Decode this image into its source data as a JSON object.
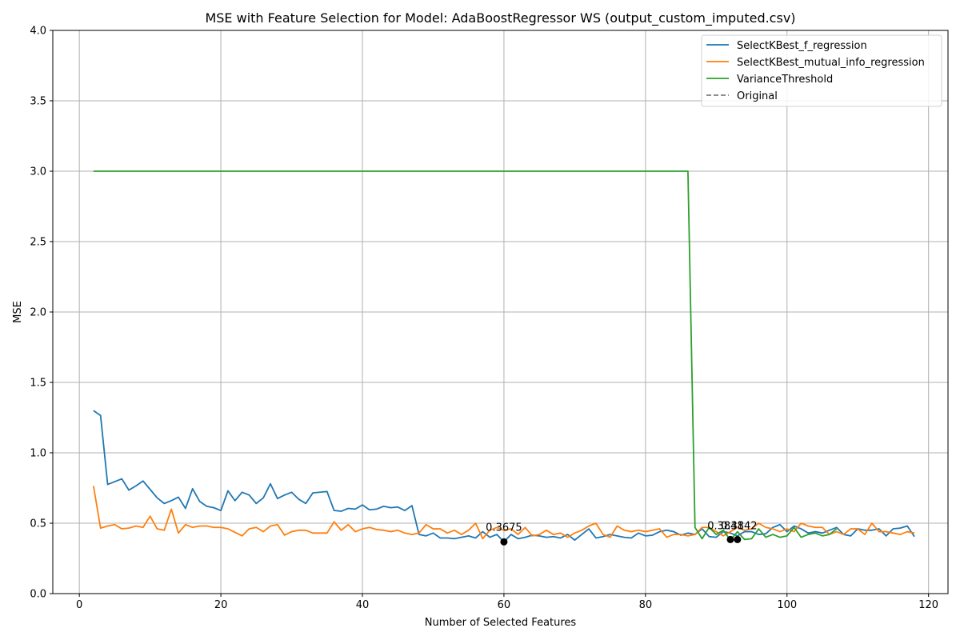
{
  "chart_data": {
    "type": "line",
    "title": "MSE with Feature Selection for Model: AdaBoostRegressor WS (output_custom_imputed.csv)",
    "xlabel": "Number of Selected Features",
    "ylabel": "MSE",
    "xlim": [
      -3.75,
      122.75
    ],
    "ylim": [
      0.0,
      4.0
    ],
    "xticks": [
      0,
      20,
      40,
      60,
      80,
      100,
      120
    ],
    "xtick_labels": [
      "0",
      "20",
      "40",
      "60",
      "80",
      "100",
      "120"
    ],
    "yticks": [
      0.0,
      0.5,
      1.0,
      1.5,
      2.0,
      2.5,
      3.0,
      3.5,
      4.0
    ],
    "ytick_labels": [
      "0.0",
      "0.5",
      "1.0",
      "1.5",
      "2.0",
      "2.5",
      "3.0",
      "3.5",
      "4.0"
    ],
    "grid": true,
    "legend_position": "top-right",
    "legend": [
      {
        "label": "SelectKBest_f_regression",
        "color": "#1f77b4",
        "style": "solid"
      },
      {
        "label": "SelectKBest_mutual_info_regression",
        "color": "#ff7f0e",
        "style": "solid"
      },
      {
        "label": "VarianceThreshold",
        "color": "#2ca02c",
        "style": "solid"
      },
      {
        "label": "Original",
        "color": "#7f7f7f",
        "style": "dashed"
      }
    ],
    "series": [
      {
        "name": "SelectKBest_f_regression",
        "color": "#1f77b4",
        "x_start": 2,
        "values": [
          1.3,
          1.265,
          0.775,
          0.795,
          0.815,
          0.735,
          0.765,
          0.8,
          0.74,
          0.68,
          0.64,
          0.66,
          0.685,
          0.605,
          0.745,
          0.655,
          0.62,
          0.61,
          0.59,
          0.73,
          0.66,
          0.72,
          0.7,
          0.64,
          0.68,
          0.78,
          0.675,
          0.7,
          0.72,
          0.67,
          0.64,
          0.715,
          0.72,
          0.725,
          0.59,
          0.585,
          0.605,
          0.6,
          0.63,
          0.595,
          0.6,
          0.62,
          0.61,
          0.615,
          0.59,
          0.625,
          0.42,
          0.41,
          0.43,
          0.395,
          0.395,
          0.39,
          0.4,
          0.41,
          0.395,
          0.44,
          0.4,
          0.42,
          0.3675,
          0.42,
          0.39,
          0.4,
          0.415,
          0.41,
          0.4,
          0.405,
          0.395,
          0.42,
          0.38,
          0.42,
          0.46,
          0.395,
          0.405,
          0.42,
          0.41,
          0.4,
          0.395,
          0.43,
          0.41,
          0.415,
          0.44,
          0.45,
          0.44,
          0.415,
          0.43,
          0.42,
          0.46,
          0.405,
          0.4,
          0.44,
          0.43,
          0.41,
          0.44,
          0.44,
          0.42,
          0.425,
          0.47,
          0.49,
          0.44,
          0.48,
          0.46,
          0.43,
          0.44,
          0.43,
          0.45,
          0.47,
          0.42,
          0.41,
          0.46,
          0.45,
          0.45,
          0.46,
          0.41,
          0.46,
          0.465,
          0.48,
          0.405
        ]
      },
      {
        "name": "SelectKBest_mutual_info_regression",
        "color": "#ff7f0e",
        "x_start": 2,
        "values": [
          0.765,
          0.465,
          0.48,
          0.49,
          0.46,
          0.465,
          0.48,
          0.47,
          0.55,
          0.46,
          0.45,
          0.6,
          0.43,
          0.49,
          0.47,
          0.48,
          0.48,
          0.47,
          0.47,
          0.46,
          0.435,
          0.41,
          0.46,
          0.47,
          0.44,
          0.48,
          0.49,
          0.415,
          0.44,
          0.45,
          0.45,
          0.43,
          0.43,
          0.43,
          0.51,
          0.45,
          0.49,
          0.44,
          0.46,
          0.47,
          0.455,
          0.45,
          0.44,
          0.45,
          0.43,
          0.42,
          0.43,
          0.49,
          0.46,
          0.46,
          0.43,
          0.45,
          0.42,
          0.45,
          0.5,
          0.39,
          0.45,
          0.47,
          0.45,
          0.46,
          0.42,
          0.47,
          0.41,
          0.42,
          0.45,
          0.42,
          0.43,
          0.4,
          0.43,
          0.45,
          0.48,
          0.5,
          0.42,
          0.4,
          0.48,
          0.45,
          0.44,
          0.45,
          0.44,
          0.45,
          0.46,
          0.4,
          0.42,
          0.42,
          0.41,
          0.42,
          0.47,
          0.47,
          0.44,
          0.41,
          0.44,
          0.47,
          0.45,
          0.46,
          0.5,
          0.47,
          0.46,
          0.44,
          0.46,
          0.44,
          0.5,
          0.48,
          0.47,
          0.47,
          0.42,
          0.44,
          0.42,
          0.46,
          0.46,
          0.42,
          0.5,
          0.44,
          0.44,
          0.43,
          0.42,
          0.44,
          0.43
        ]
      },
      {
        "name": "VarianceThreshold",
        "color": "#2ca02c",
        "x_start": 2,
        "values": [
          3,
          3,
          3,
          3,
          3,
          3,
          3,
          3,
          3,
          3,
          3,
          3,
          3,
          3,
          3,
          3,
          3,
          3,
          3,
          3,
          3,
          3,
          3,
          3,
          3,
          3,
          3,
          3,
          3,
          3,
          3,
          3,
          3,
          3,
          3,
          3,
          3,
          3,
          3,
          3,
          3,
          3,
          3,
          3,
          3,
          3,
          3,
          3,
          3,
          3,
          3,
          3,
          3,
          3,
          3,
          3,
          3,
          3,
          3,
          3,
          3,
          3,
          3,
          3,
          3,
          3,
          3,
          3,
          3,
          3,
          3,
          3,
          3,
          3,
          3,
          3,
          3,
          3,
          3,
          3,
          3,
          3,
          3,
          3,
          3,
          0.47,
          0.39,
          0.47,
          0.42,
          0.45,
          0.38,
          0.44,
          0.3842,
          0.39,
          0.46,
          0.4,
          0.42,
          0.4,
          0.41,
          0.47,
          0.4,
          0.42,
          0.43,
          0.41,
          0.42,
          0.46
        ]
      }
    ],
    "annotations": [
      {
        "x": 60,
        "y": 0.3675,
        "label": "0.3675"
      },
      {
        "x": 92,
        "y": 0.3841,
        "label": "0.3841"
      },
      {
        "x": 93,
        "y": 0.3842,
        "label": "0.3842"
      }
    ]
  }
}
